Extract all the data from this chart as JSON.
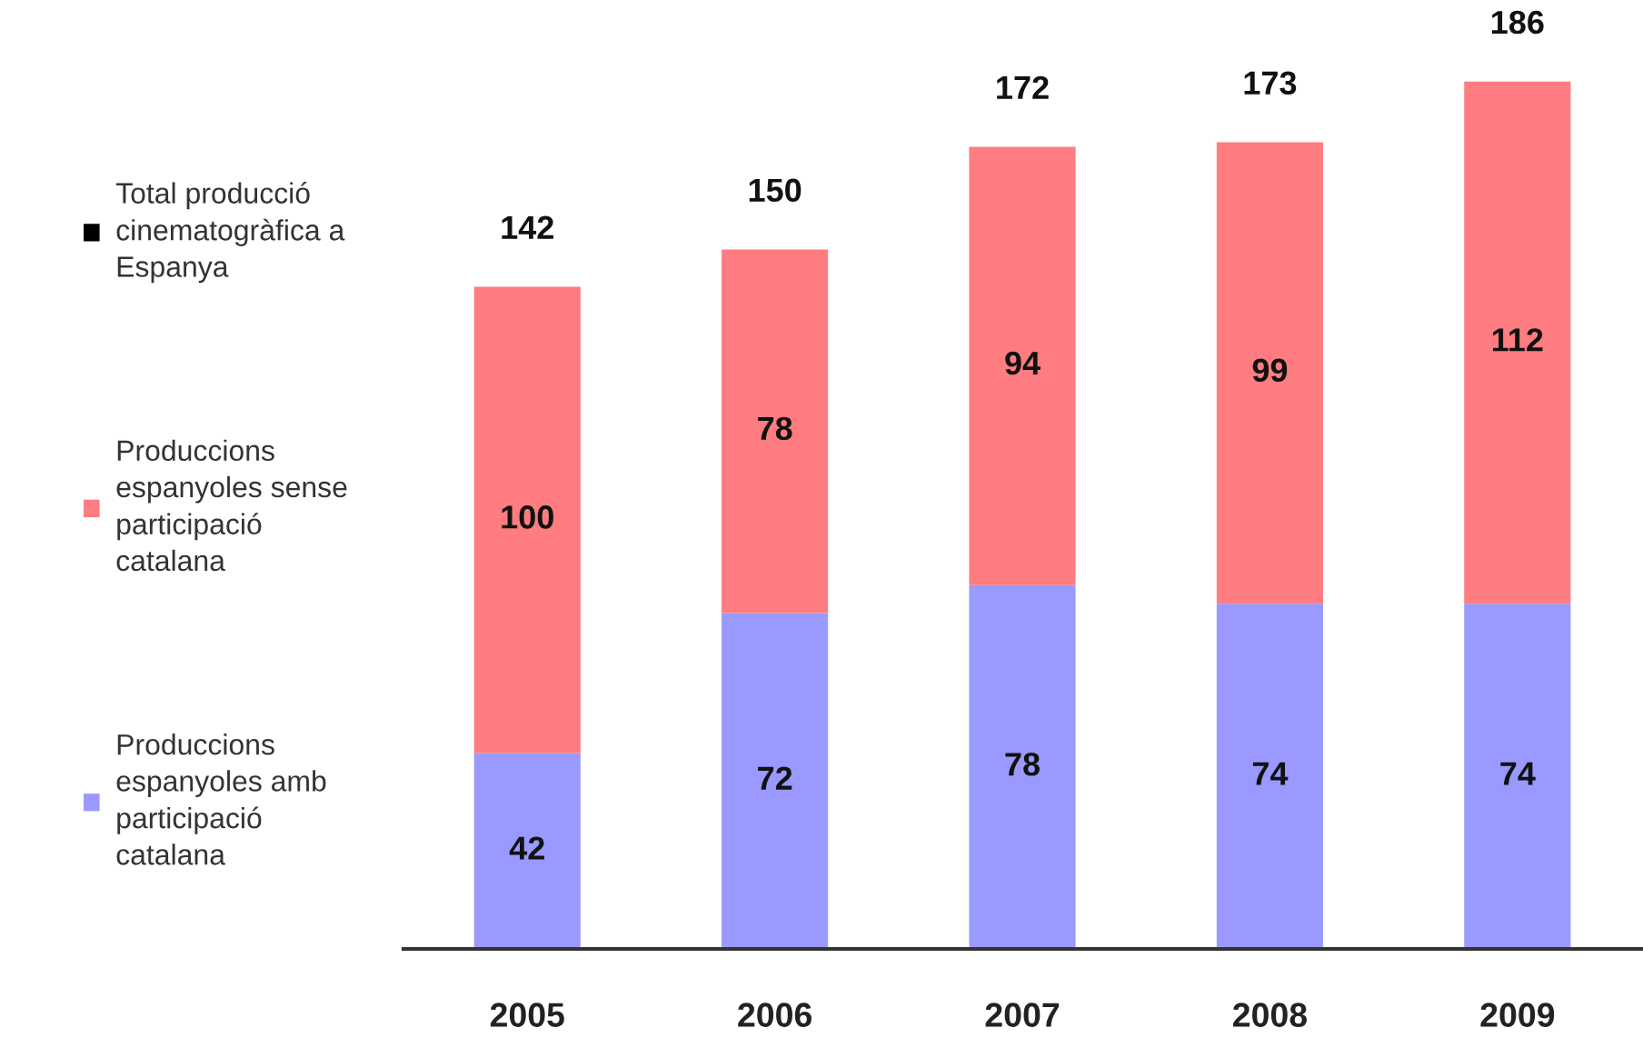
{
  "chart_data": {
    "type": "bar",
    "stacked": true,
    "categories": [
      "2005",
      "2006",
      "2007",
      "2008",
      "2009"
    ],
    "series": [
      {
        "name": "Produccions espanyoles amb participació catalana",
        "color": "#9999ff",
        "values": [
          42,
          72,
          78,
          74,
          74
        ]
      },
      {
        "name": "Produccions espanyoles sense participació catalana",
        "color": "#ff7c80",
        "values": [
          100,
          78,
          94,
          99,
          112
        ]
      },
      {
        "name": "Total producció cinematogràfica a Espanya",
        "color": "#000000",
        "values": [
          null,
          null,
          null,
          null,
          null
        ]
      }
    ],
    "totals": [
      "142",
      "150",
      "172",
      "173",
      "186"
    ],
    "data_labels": true,
    "legend": "left",
    "grid": false
  }
}
